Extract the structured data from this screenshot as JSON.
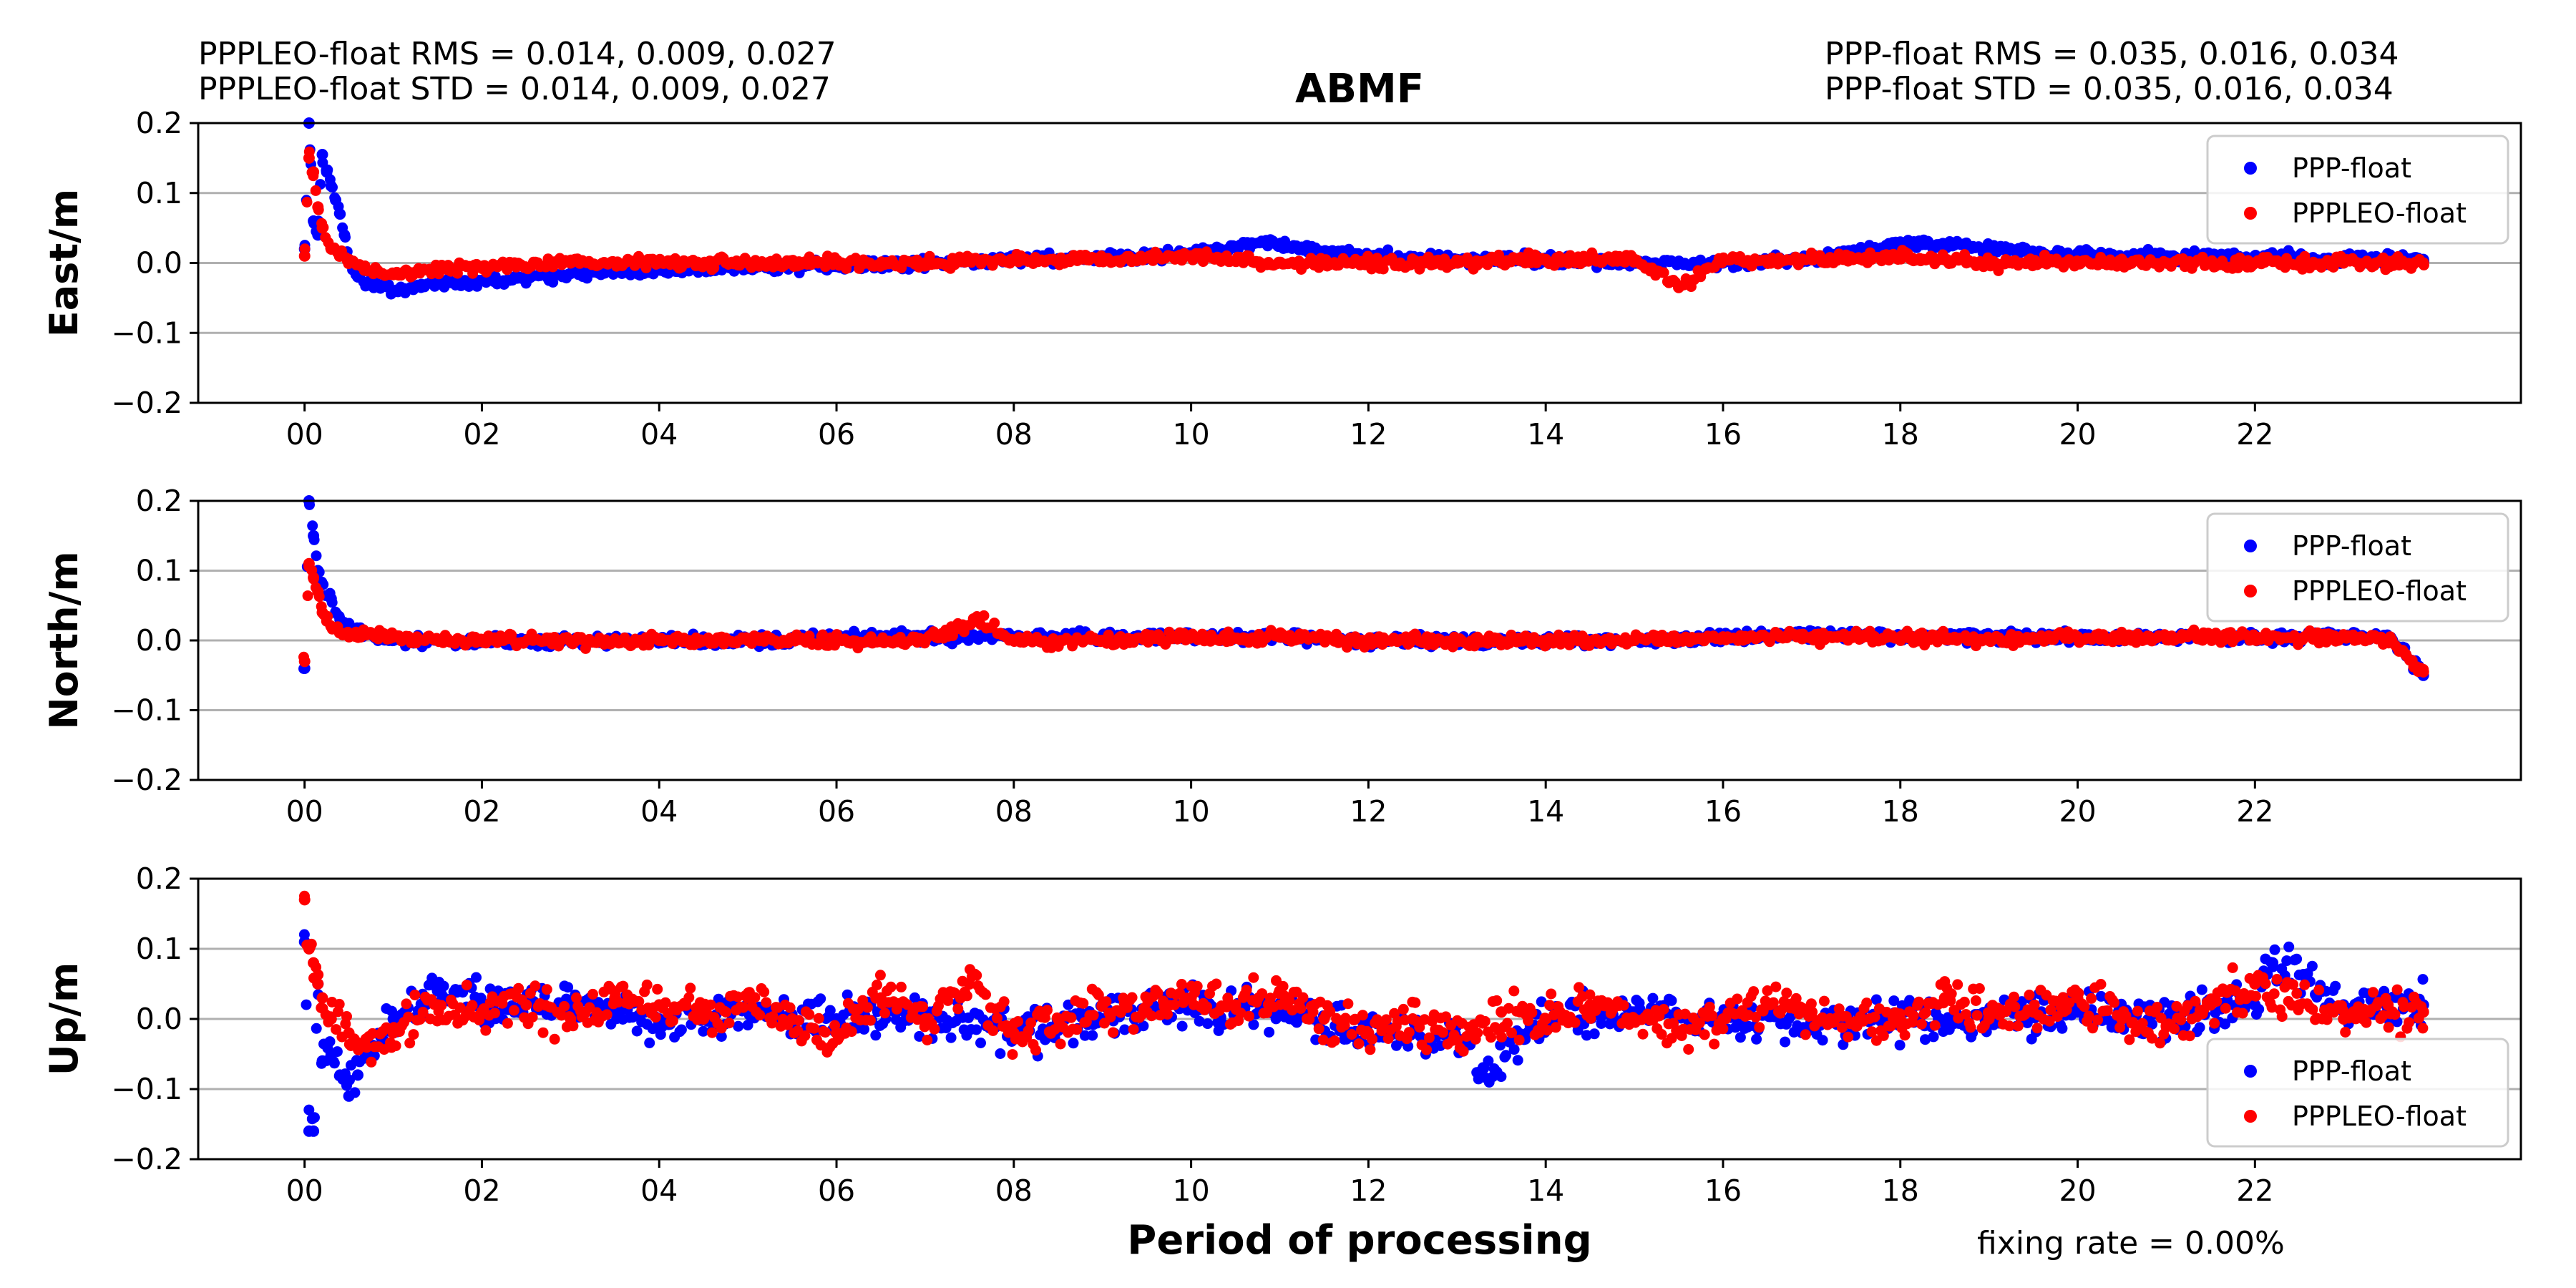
{
  "stats": {
    "left_rms": "PPPLEO-float RMS =  0.014, 0.009, 0.027",
    "left_std": "PPPLEO-float STD =  0.014, 0.009, 0.027",
    "right_rms": "PPP-float RMS =  0.035, 0.016, 0.034",
    "right_std": "PPP-float STD =  0.035, 0.016, 0.034"
  },
  "fixing_rate": "fixing rate =   0.00%",
  "colors": {
    "ppp": "#0000ff",
    "pppleo": "#ff0000",
    "grid": "#b0b0b0"
  },
  "chart_data": {
    "type": "scatter",
    "title": "ABMF",
    "xlabel": "Period of processing",
    "x_unit": "hours",
    "xlim": [
      -1.2,
      25.0
    ],
    "x_ticks": [
      0,
      2,
      4,
      6,
      8,
      10,
      12,
      14,
      16,
      18,
      20,
      22
    ],
    "x_tick_labels": [
      "00",
      "02",
      "04",
      "06",
      "08",
      "10",
      "12",
      "14",
      "16",
      "18",
      "20",
      "22"
    ],
    "grid": "horizontal",
    "series_names": [
      "PPP-float",
      "PPPLEO-float"
    ],
    "panels": [
      {
        "ylabel": "East/m",
        "ylim": [
          -0.2,
          0.2
        ],
        "y_ticks": [
          -0.2,
          -0.1,
          0.0,
          0.1,
          0.2
        ],
        "y_tick_labels": [
          "−0.2",
          "−0.1",
          "0.0",
          "0.1",
          "0.2"
        ],
        "legend": "top-right",
        "series": [
          {
            "name": "PPP-float",
            "x": [
              0.0,
              0.05,
              0.1,
              0.15,
              0.2,
              0.25,
              0.3,
              0.35,
              0.4,
              0.45,
              0.5,
              0.6,
              0.7,
              0.8,
              1.0,
              1.2,
              1.5,
              2.0,
              2.5,
              3.0,
              4.0,
              5.0,
              6.0,
              7.0,
              8.0,
              9.0,
              10.0,
              10.8,
              12.0,
              13.0,
              14.0,
              15.0,
              16.0,
              17.0,
              18.0,
              19.0,
              20.0,
              21.0,
              22.0,
              23.0,
              23.9
            ],
            "y": [
              0.02,
              0.2,
              0.06,
              0.04,
              0.155,
              0.13,
              0.11,
              0.09,
              0.07,
              0.04,
              0.0,
              -0.02,
              -0.03,
              -0.03,
              -0.04,
              -0.035,
              -0.03,
              -0.025,
              -0.02,
              -0.015,
              -0.01,
              -0.008,
              -0.005,
              0.0,
              0.005,
              0.008,
              0.012,
              0.03,
              0.01,
              0.005,
              0.005,
              0.0,
              0.0,
              0.005,
              0.03,
              0.02,
              0.01,
              0.01,
              0.01,
              0.005,
              0.005
            ]
          },
          {
            "name": "PPPLEO-float",
            "x": [
              0.0,
              0.05,
              0.1,
              0.15,
              0.2,
              0.3,
              0.4,
              0.5,
              0.7,
              1.0,
              1.5,
              2.0,
              3.0,
              4.0,
              5.0,
              6.0,
              7.0,
              8.0,
              9.0,
              10.0,
              11.0,
              12.0,
              13.0,
              14.0,
              15.0,
              15.5,
              16.0,
              17.0,
              18.0,
              19.0,
              20.0,
              21.0,
              22.0,
              23.0,
              23.9
            ],
            "y": [
              0.01,
              0.15,
              0.13,
              0.08,
              0.05,
              0.02,
              0.01,
              0.005,
              -0.01,
              -0.015,
              -0.01,
              -0.005,
              0.0,
              0.0,
              0.0,
              0.0,
              0.0,
              0.005,
              0.005,
              0.01,
              0.0,
              0.0,
              0.0,
              0.005,
              0.005,
              -0.035,
              0.005,
              0.005,
              0.01,
              0.0,
              0.0,
              0.0,
              0.0,
              0.0,
              0.0
            ]
          }
        ]
      },
      {
        "ylabel": "North/m",
        "ylim": [
          -0.2,
          0.2
        ],
        "y_ticks": [
          -0.2,
          -0.1,
          0.0,
          0.1,
          0.2
        ],
        "y_tick_labels": [
          "−0.2",
          "−0.1",
          "0.0",
          "0.1",
          "0.2"
        ],
        "legend": "top-right",
        "series": [
          {
            "name": "PPP-float",
            "x": [
              0.0,
              0.05,
              0.1,
              0.15,
              0.2,
              0.3,
              0.4,
              0.5,
              0.7,
              1.0,
              2.0,
              3.0,
              4.0,
              5.0,
              6.0,
              7.0,
              8.0,
              9.0,
              10.0,
              11.0,
              12.0,
              13.0,
              14.0,
              15.0,
              16.0,
              17.0,
              18.0,
              19.0,
              20.0,
              21.0,
              22.0,
              23.0,
              23.5,
              23.7,
              23.9
            ],
            "y": [
              -0.04,
              0.2,
              0.15,
              0.1,
              0.08,
              0.06,
              0.03,
              0.02,
              0.01,
              0.0,
              0.0,
              0.0,
              0.0,
              0.0,
              0.005,
              0.005,
              0.005,
              0.005,
              0.005,
              0.005,
              0.0,
              0.0,
              0.0,
              0.0,
              0.005,
              0.01,
              0.005,
              0.005,
              0.005,
              0.005,
              0.005,
              0.005,
              0.005,
              -0.02,
              -0.05
            ]
          },
          {
            "name": "PPPLEO-float",
            "x": [
              0.0,
              0.05,
              0.1,
              0.15,
              0.2,
              0.3,
              0.5,
              1.0,
              2.0,
              3.0,
              4.0,
              5.0,
              6.0,
              7.0,
              7.6,
              8.0,
              9.0,
              10.0,
              11.0,
              12.0,
              13.0,
              14.0,
              15.0,
              16.0,
              17.0,
              18.0,
              19.0,
              20.0,
              21.0,
              22.0,
              23.0,
              23.5,
              23.7,
              23.9
            ],
            "y": [
              -0.03,
              0.11,
              0.09,
              0.07,
              0.04,
              0.02,
              0.01,
              0.005,
              0.0,
              0.0,
              0.0,
              0.0,
              0.0,
              0.0,
              0.03,
              0.0,
              0.0,
              0.005,
              0.005,
              0.0,
              0.0,
              0.0,
              0.0,
              0.005,
              0.005,
              0.005,
              0.0,
              0.005,
              0.005,
              0.005,
              0.005,
              0.0,
              -0.02,
              -0.045
            ]
          }
        ]
      },
      {
        "ylabel": "Up/m",
        "ylim": [
          -0.2,
          0.2
        ],
        "y_ticks": [
          -0.2,
          -0.1,
          0.0,
          0.1,
          0.2
        ],
        "y_tick_labels": [
          "−0.2",
          "−0.1",
          "0.0",
          "0.1",
          "0.2"
        ],
        "legend": "bottom-right",
        "series": [
          {
            "name": "PPP-float",
            "x": [
              0.0,
              0.05,
              0.1,
              0.15,
              0.2,
              0.3,
              0.4,
              0.5,
              0.6,
              0.8,
              1.0,
              1.5,
              2.0,
              3.0,
              4.0,
              5.0,
              6.0,
              7.0,
              8.0,
              9.0,
              10.0,
              11.0,
              12.0,
              13.0,
              13.3,
              14.0,
              15.0,
              16.0,
              17.0,
              18.0,
              19.0,
              20.0,
              21.0,
              22.0,
              22.2,
              23.0,
              23.9
            ],
            "y": [
              0.11,
              -0.16,
              -0.16,
              0.05,
              -0.06,
              -0.05,
              -0.08,
              -0.11,
              -0.08,
              -0.04,
              0.0,
              0.04,
              0.02,
              0.02,
              0.0,
              0.01,
              0.0,
              0.0,
              -0.02,
              0.0,
              0.02,
              0.01,
              -0.02,
              -0.03,
              -0.07,
              0.0,
              0.01,
              0.0,
              -0.01,
              0.0,
              0.0,
              0.01,
              0.0,
              0.02,
              0.08,
              0.02,
              0.02
            ]
          },
          {
            "name": "PPPLEO-float",
            "x": [
              0.0,
              0.05,
              0.1,
              0.15,
              0.2,
              0.3,
              0.5,
              0.7,
              1.0,
              1.5,
              2.0,
              2.5,
              3.0,
              3.5,
              4.0,
              4.5,
              5.0,
              5.5,
              6.0,
              6.5,
              7.0,
              7.5,
              8.0,
              8.5,
              9.0,
              9.5,
              10.0,
              10.5,
              11.0,
              11.5,
              12.0,
              12.5,
              13.0,
              13.5,
              14.0,
              14.5,
              15.0,
              15.5,
              16.0,
              16.5,
              17.0,
              17.5,
              18.0,
              18.5,
              19.0,
              19.5,
              20.0,
              20.5,
              21.0,
              21.5,
              22.0,
              22.5,
              23.0,
              23.5,
              23.9
            ],
            "y": [
              0.17,
              0.1,
              0.08,
              0.05,
              0.03,
              0.0,
              -0.02,
              -0.04,
              -0.02,
              0.02,
              0.01,
              0.02,
              0.0,
              0.03,
              0.02,
              0.0,
              0.03,
              0.0,
              -0.02,
              0.03,
              0.0,
              0.05,
              -0.02,
              0.0,
              0.02,
              0.01,
              0.03,
              0.02,
              0.04,
              0.0,
              -0.02,
              0.0,
              -0.03,
              0.01,
              0.0,
              0.02,
              0.0,
              -0.02,
              0.0,
              0.02,
              0.01,
              -0.01,
              0.0,
              0.03,
              0.0,
              0.01,
              0.03,
              0.0,
              -0.01,
              0.02,
              0.05,
              0.02,
              0.0,
              0.02,
              0.01
            ]
          }
        ]
      }
    ]
  }
}
